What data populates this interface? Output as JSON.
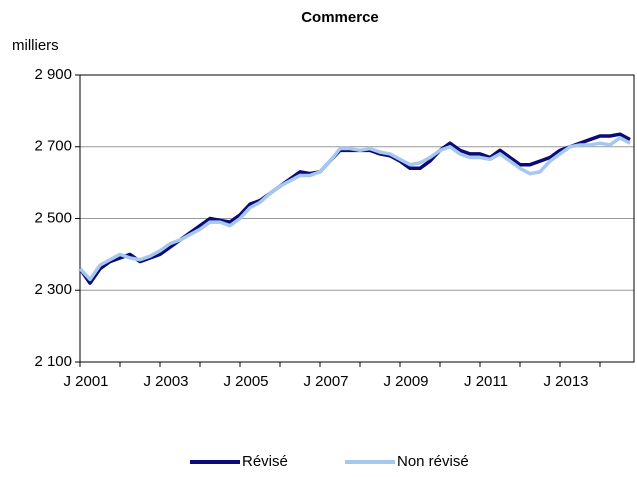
{
  "chart_data": {
    "type": "line",
    "title": "Commerce",
    "y_label": "milliers",
    "categories": [
      "J 2001",
      null,
      null,
      null,
      null,
      null,
      null,
      null,
      "J 2003",
      null,
      null,
      null,
      null,
      null,
      null,
      null,
      "J 2005",
      null,
      null,
      null,
      null,
      null,
      null,
      null,
      "J 2007",
      null,
      null,
      null,
      null,
      null,
      null,
      null,
      "J 2009",
      null,
      null,
      null,
      null,
      null,
      null,
      null,
      "J 2011",
      null,
      null,
      null,
      null,
      null,
      null,
      null,
      "J 2013",
      null,
      null,
      null,
      null,
      null,
      null,
      null
    ],
    "series": [
      {
        "name": "Révisé",
        "color": "#0a0a78",
        "values": [
          2360,
          2320,
          2360,
          2380,
          2390,
          2400,
          2380,
          2390,
          2400,
          2420,
          2440,
          2460,
          2480,
          2500,
          2495,
          2490,
          2510,
          2540,
          2550,
          2570,
          2590,
          2610,
          2630,
          2625,
          2630,
          2660,
          2690,
          2690,
          2690,
          2690,
          2680,
          2675,
          2660,
          2640,
          2640,
          2660,
          2690,
          2710,
          2690,
          2680,
          2680,
          2670,
          2690,
          2670,
          2650,
          2650,
          2660,
          2670,
          2690,
          2700,
          2710,
          2720,
          2730,
          2730,
          2735,
          2720
        ]
      },
      {
        "name": "Non révisé",
        "color": "#a6c8ee",
        "values": [
          2360,
          2330,
          2370,
          2385,
          2400,
          2390,
          2385,
          2395,
          2410,
          2430,
          2440,
          2455,
          2470,
          2490,
          2490,
          2480,
          2500,
          2530,
          2545,
          2570,
          2590,
          2605,
          2620,
          2620,
          2630,
          2660,
          2695,
          2695,
          2690,
          2695,
          2685,
          2680,
          2665,
          2650,
          2655,
          2670,
          2690,
          2700,
          2680,
          2670,
          2670,
          2665,
          2680,
          2660,
          2640,
          2625,
          2630,
          2660,
          2680,
          2700,
          2705,
          2705,
          2710,
          2705,
          2725,
          2710
        ]
      }
    ],
    "ylim": [
      2100,
      2900
    ],
    "yticks": [
      {
        "value": 2100,
        "label": "2 100"
      },
      {
        "value": 2300,
        "label": "2 300"
      },
      {
        "value": 2500,
        "label": "2 500"
      },
      {
        "value": 2700,
        "label": "2 700"
      },
      {
        "value": 2900,
        "label": "2 900"
      }
    ],
    "grid": true,
    "legend": "bottom"
  }
}
